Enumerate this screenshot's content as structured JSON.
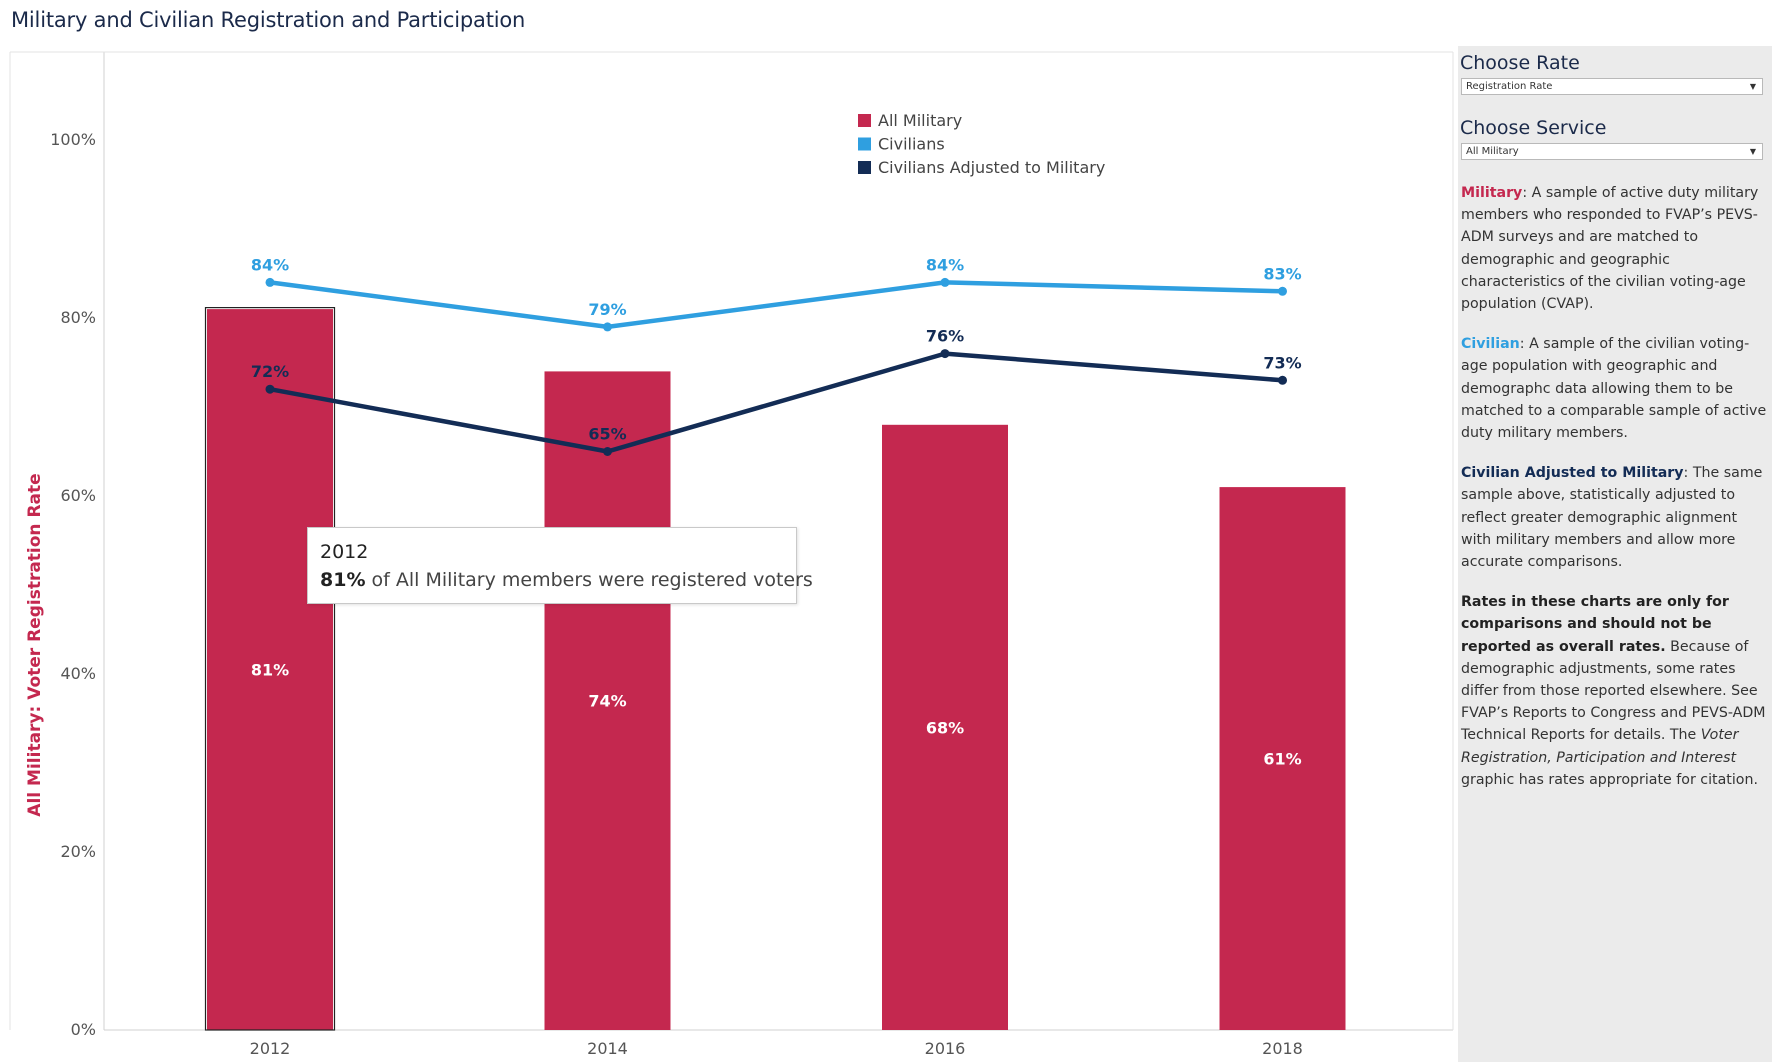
{
  "page": {
    "title": "Military and Civilian Registration and Participation"
  },
  "controls": {
    "rate": {
      "label": "Choose Rate",
      "selected": "Registration Rate"
    },
    "service": {
      "label": "Choose Service",
      "selected": "All Military"
    }
  },
  "descriptions": {
    "military": {
      "term": "Military",
      "text": ": A sample of active duty military members who responded to FVAP’s PEVS-ADM surveys and are matched to demographic and geographic characteristics of the civilian voting-age population (CVAP)."
    },
    "civilian": {
      "term": "Civilian",
      "text": ": A sample of the civilian voting-age population with geographic and demographc data allowing them to be matched to a comparable sample of active duty military members."
    },
    "adjusted": {
      "term": "Civilian Adjusted to Military",
      "text": ": The same sample above, statistically adjusted to reflect greater demographic alignment with military members and allow more accurate comparisons."
    },
    "note": {
      "bold": "Rates in these charts are only for comparisons and should not be reported as overall rates.",
      "text1": " Because of demographic adjustments, some rates  differ from those reported elsewhere. See FVAP’s Reports to Congress and PEVS-ADM Technical Reports for details. The ",
      "italic": "Voter Registration, Participation and Interest",
      "text2": " graphic has rates appropriate for citation."
    }
  },
  "tooltip": {
    "year": "2012",
    "value": "81%",
    "text": " of All Military members were registered voters"
  },
  "colors": {
    "military": "#c4284f",
    "civilians": "#2f9fe0",
    "adjusted": "#132c55"
  },
  "chart_data": {
    "type": "bar",
    "categories": [
      "2012",
      "2014",
      "2016",
      "2018"
    ],
    "ylabel": "All Military: Voter Registration Rate",
    "ylim": [
      0,
      1.1
    ],
    "yticks": [
      0,
      0.2,
      0.4,
      0.6,
      0.8,
      1.0
    ],
    "ytick_labels": [
      "0%",
      "20%",
      "40%",
      "60%",
      "80%",
      "100%"
    ],
    "legend_position": "top-center",
    "grid": false,
    "bars": {
      "name": "All Military",
      "values": [
        0.81,
        0.74,
        0.68,
        0.61
      ],
      "labels": [
        "81%",
        "74%",
        "68%",
        "61%"
      ],
      "highlighted_index": 0
    },
    "series": [
      {
        "name": "Civilians",
        "type": "line",
        "values": [
          0.84,
          0.79,
          0.84,
          0.83
        ],
        "labels": [
          "84%",
          "79%",
          "84%",
          "83%"
        ]
      },
      {
        "name": "Civilians Adjusted to Military",
        "type": "line",
        "values": [
          0.72,
          0.65,
          0.76,
          0.73
        ],
        "labels": [
          "72%",
          "65%",
          "76%",
          "73%"
        ]
      }
    ]
  }
}
